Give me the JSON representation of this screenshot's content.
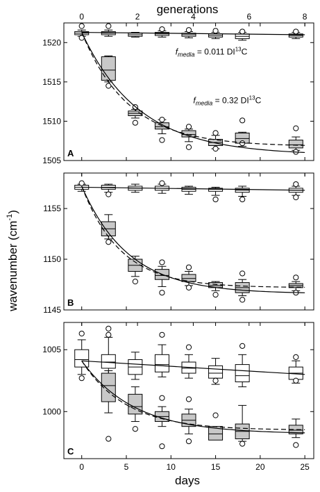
{
  "chart_data": {
    "type": "box",
    "xlabel": "days",
    "ylabel": "wavenumber (cm-1)",
    "ylabel_parts": {
      "base": "wavenumber (cm",
      "sup": "-1",
      "end": ")"
    },
    "x2label": "generations",
    "xlim": [
      -2,
      26
    ],
    "x_ticks": [
      0,
      5,
      10,
      15,
      20,
      25
    ],
    "x_tick_labels": [
      "0",
      "5",
      "10",
      "15",
      "20",
      "25"
    ],
    "x2_ticks": [
      0,
      2,
      4,
      6,
      8
    ],
    "x2_tick_labels": [
      "0",
      "2",
      "4",
      "6",
      "8"
    ],
    "x2_per_day": 0.32,
    "colors": {
      "control": "#ffffff",
      "labeled": "#c8c8c8",
      "stroke": "#000000"
    },
    "panels": [
      {
        "letter": "A",
        "ylim": [
          1505,
          1522.5
        ],
        "y_ticks": [
          1505,
          1510,
          1515,
          1520
        ],
        "y_tick_labels": [
          "1505",
          "1510",
          "1515",
          "1520"
        ],
        "annotations": [
          {
            "parts": [
              "f",
              "media",
              " = 0.011 DI",
              "13",
              "C"
            ],
            "x": 10.5,
            "y": 1518.5
          },
          {
            "parts": [
              "f",
              "media",
              " = 0.32 DI",
              "13",
              "C"
            ],
            "x": 12.5,
            "y": 1512.3
          }
        ],
        "series": [
          {
            "color": "#ffffff",
            "boxes": [
              {
                "x": 0,
                "q1": 1521.0,
                "med": 1521.2,
                "q3": 1521.4,
                "wlo": 1520.8,
                "whi": 1521.6,
                "out": [
                  1522.1,
                  1520.6
                ]
              },
              {
                "x": 3,
                "q1": 1521.0,
                "med": 1521.2,
                "q3": 1521.4,
                "wlo": 1520.8,
                "whi": 1521.6,
                "out": [
                  1522.1
                ]
              },
              {
                "x": 6,
                "q1": 1520.8,
                "med": 1521.0,
                "q3": 1521.2,
                "wlo": 1520.7,
                "whi": 1521.3,
                "out": []
              },
              {
                "x": 9,
                "q1": 1520.9,
                "med": 1521.1,
                "q3": 1521.3,
                "wlo": 1520.7,
                "whi": 1521.5,
                "out": [
                  1521.7
                ]
              },
              {
                "x": 12,
                "q1": 1520.8,
                "med": 1521.0,
                "q3": 1521.2,
                "wlo": 1520.6,
                "whi": 1521.4,
                "out": [
                  1521.6
                ]
              },
              {
                "x": 15,
                "q1": 1520.7,
                "med": 1520.9,
                "q3": 1521.1,
                "wlo": 1520.5,
                "whi": 1521.3,
                "out": [
                  1521.5
                ]
              },
              {
                "x": 18,
                "q1": 1520.5,
                "med": 1520.8,
                "q3": 1521.1,
                "wlo": 1520.3,
                "whi": 1521.3,
                "out": [
                  1521.4
                ]
              },
              {
                "x": 24,
                "q1": 1520.7,
                "med": 1520.9,
                "q3": 1521.1,
                "wlo": 1520.5,
                "whi": 1521.3,
                "out": [
                  1521.4
                ]
              }
            ]
          },
          {
            "color": "#c8c8c8",
            "boxes": [
              {
                "x": 3,
                "q1": 1515.2,
                "med": 1516.5,
                "q3": 1518.2,
                "wlo": 1515.0,
                "whi": 1518.3,
                "out": [
                  1514.5
                ]
              },
              {
                "x": 6,
                "q1": 1510.7,
                "med": 1511.0,
                "q3": 1511.3,
                "wlo": 1510.4,
                "whi": 1511.5,
                "out": [
                  1511.8,
                  1509.8
                ]
              },
              {
                "x": 9,
                "q1": 1509.0,
                "med": 1509.3,
                "q3": 1509.8,
                "wlo": 1508.4,
                "whi": 1510.2,
                "out": [
                  1510.2,
                  1507.6
                ]
              },
              {
                "x": 12,
                "q1": 1508.0,
                "med": 1508.3,
                "q3": 1508.8,
                "wlo": 1507.4,
                "whi": 1509.0,
                "out": [
                  1509.3,
                  1506.7
                ]
              },
              {
                "x": 15,
                "q1": 1506.9,
                "med": 1507.3,
                "q3": 1507.7,
                "wlo": 1506.5,
                "whi": 1508.2,
                "out": [
                  1508.5,
                  1506.5
                ]
              },
              {
                "x": 18,
                "q1": 1507.2,
                "med": 1507.8,
                "q3": 1508.5,
                "wlo": 1506.8,
                "whi": 1508.6,
                "out": [
                  1510.1,
                  1507.2
                ]
              },
              {
                "x": 24,
                "q1": 1506.6,
                "med": 1507.0,
                "q3": 1507.6,
                "wlo": 1506.3,
                "whi": 1508.0,
                "out": [
                  1509.1,
                  1506.1
                ]
              }
            ]
          }
        ],
        "curves": [
          {
            "type": "line",
            "style": "solid",
            "x0": 0,
            "x1": 25,
            "y0": 1521.3,
            "y1": 1521.0
          },
          {
            "type": "exp",
            "style": "solid",
            "x0": 0,
            "x1": 25,
            "a": 1505.7,
            "b": 15.6,
            "k": 0.155
          },
          {
            "type": "exp",
            "style": "dashed",
            "x0": 0,
            "x1": 25,
            "a": 1506.8,
            "b": 14.5,
            "k": 0.19
          }
        ]
      },
      {
        "letter": "B",
        "ylim": [
          1145,
          1158.5
        ],
        "y_ticks": [
          1145,
          1150,
          1155
        ],
        "y_tick_labels": [
          "1145",
          "1150",
          "1155"
        ],
        "annotations": [],
        "series": [
          {
            "color": "#ffffff",
            "boxes": [
              {
                "x": 0,
                "q1": 1156.9,
                "med": 1157.1,
                "q3": 1157.3,
                "wlo": 1156.7,
                "whi": 1157.4,
                "out": [
                  1157.5
                ]
              },
              {
                "x": 3,
                "q1": 1156.9,
                "med": 1157.1,
                "q3": 1157.3,
                "wlo": 1156.6,
                "whi": 1157.4,
                "out": [
                  1156.4
                ]
              },
              {
                "x": 6,
                "q1": 1156.8,
                "med": 1157.0,
                "q3": 1157.2,
                "wlo": 1156.6,
                "whi": 1157.4,
                "out": []
              },
              {
                "x": 9,
                "q1": 1156.8,
                "med": 1157.0,
                "q3": 1157.2,
                "wlo": 1156.5,
                "whi": 1157.4,
                "out": [
                  1157.5
                ]
              },
              {
                "x": 12,
                "q1": 1156.7,
                "med": 1156.9,
                "q3": 1157.1,
                "wlo": 1156.4,
                "whi": 1157.2,
                "out": []
              },
              {
                "x": 15,
                "q1": 1156.7,
                "med": 1156.9,
                "q3": 1157.0,
                "wlo": 1156.3,
                "whi": 1157.1,
                "out": [
                  1155.9
                ]
              },
              {
                "x": 18,
                "q1": 1156.6,
                "med": 1156.8,
                "q3": 1157.0,
                "wlo": 1156.2,
                "whi": 1157.2,
                "out": [
                  1155.9
                ]
              },
              {
                "x": 24,
                "q1": 1156.6,
                "med": 1156.8,
                "q3": 1157.0,
                "wlo": 1156.3,
                "whi": 1157.2,
                "out": [
                  1157.4,
                  1156.1
                ]
              }
            ]
          },
          {
            "color": "#c8c8c8",
            "boxes": [
              {
                "x": 3,
                "q1": 1152.3,
                "med": 1153.0,
                "q3": 1153.7,
                "wlo": 1152.0,
                "whi": 1154.4,
                "out": [
                  1151.7
                ]
              },
              {
                "x": 6,
                "q1": 1148.8,
                "med": 1149.4,
                "q3": 1150.0,
                "wlo": 1148.3,
                "whi": 1150.3,
                "out": [
                  1147.8
                ]
              },
              {
                "x": 9,
                "q1": 1148.0,
                "med": 1148.4,
                "q3": 1149.0,
                "wlo": 1147.3,
                "whi": 1149.3,
                "out": [
                  1149.7,
                  1146.7
                ]
              },
              {
                "x": 12,
                "q1": 1147.8,
                "med": 1148.1,
                "q3": 1148.5,
                "wlo": 1147.4,
                "whi": 1148.8,
                "out": [
                  1149.2,
                  1147.2
                ]
              },
              {
                "x": 15,
                "q1": 1147.2,
                "med": 1147.4,
                "q3": 1147.7,
                "wlo": 1146.9,
                "whi": 1147.8,
                "out": [
                  1146.5
                ]
              },
              {
                "x": 18,
                "q1": 1146.7,
                "med": 1147.2,
                "q3": 1147.7,
                "wlo": 1146.4,
                "whi": 1148.0,
                "out": [
                  1148.6,
                  1146.0
                ]
              },
              {
                "x": 24,
                "q1": 1147.2,
                "med": 1147.4,
                "q3": 1147.6,
                "wlo": 1146.9,
                "whi": 1147.8,
                "out": [
                  1148.2,
                  1146.7
                ]
              }
            ]
          }
        ],
        "curves": [
          {
            "type": "line",
            "style": "solid",
            "x0": 0,
            "x1": 25,
            "y0": 1157.1,
            "y1": 1156.8
          },
          {
            "type": "exp",
            "style": "solid",
            "x0": 0,
            "x1": 25,
            "a": 1146.6,
            "b": 10.6,
            "k": 0.19
          },
          {
            "type": "exp",
            "style": "dashed",
            "x0": 0,
            "x1": 25,
            "a": 1147.2,
            "b": 10.0,
            "k": 0.23
          }
        ]
      },
      {
        "letter": "C",
        "ylim": [
          996.2,
          1007.2
        ],
        "y_ticks": [
          1000,
          1005
        ],
        "y_tick_labels": [
          "1000",
          "1005"
        ],
        "annotations": [],
        "series": [
          {
            "color": "#ffffff",
            "boxes": [
              {
                "x": 0,
                "q1": 1003.6,
                "med": 1004.2,
                "q3": 1005.0,
                "wlo": 1003.0,
                "whi": 1005.8,
                "out": [
                  1006.3,
                  1002.7
                ]
              },
              {
                "x": 3,
                "q1": 1003.5,
                "med": 1004.0,
                "q3": 1004.6,
                "wlo": 1002.9,
                "whi": 1006.0,
                "out": [
                  1006.7,
                  1006.2
                ]
              },
              {
                "x": 6,
                "q1": 1003.0,
                "med": 1003.6,
                "q3": 1004.2,
                "wlo": 1002.6,
                "whi": 1004.8,
                "out": []
              },
              {
                "x": 9,
                "q1": 1003.2,
                "med": 1003.8,
                "q3": 1004.6,
                "wlo": 1002.8,
                "whi": 1005.4,
                "out": [
                  1006.2
                ]
              },
              {
                "x": 12,
                "q1": 1003.1,
                "med": 1003.5,
                "q3": 1004.0,
                "wlo": 1002.7,
                "whi": 1004.6,
                "out": [
                  1005.2
                ]
              },
              {
                "x": 15,
                "q1": 1002.7,
                "med": 1003.1,
                "q3": 1003.7,
                "wlo": 1002.2,
                "whi": 1004.3,
                "out": [
                  1002.5
                ]
              },
              {
                "x": 18,
                "q1": 1002.4,
                "med": 1002.9,
                "q3": 1003.8,
                "wlo": 1002.0,
                "whi": 1004.6,
                "out": [
                  1005.3
                ]
              },
              {
                "x": 24,
                "q1": 1002.6,
                "med": 1003.1,
                "q3": 1003.6,
                "wlo": 1002.3,
                "whi": 1004.1,
                "out": [
                  1004.4,
                  1002.5
                ]
              }
            ]
          },
          {
            "color": "#c8c8c8",
            "boxes": [
              {
                "x": 3,
                "q1": 1000.8,
                "med": 1002.1,
                "q3": 1003.1,
                "wlo": 999.9,
                "whi": 1003.3,
                "out": [
                  997.8
                ]
              },
              {
                "x": 6,
                "q1": 999.8,
                "med": 1000.4,
                "q3": 1001.4,
                "wlo": 999.2,
                "whi": 1002.0,
                "out": [
                  998.6
                ]
              },
              {
                "x": 9,
                "q1": 999.2,
                "med": 999.6,
                "q3": 1000.0,
                "wlo": 998.8,
                "whi": 1000.4,
                "out": [
                  1001.1,
                  997.2
                ]
              },
              {
                "x": 12,
                "q1": 998.8,
                "med": 999.3,
                "q3": 999.8,
                "wlo": 998.2,
                "whi": 1000.2,
                "out": [
                  1001.0,
                  997.6
                ]
              },
              {
                "x": 15,
                "q1": 997.7,
                "med": 998.2,
                "q3": 998.8,
                "wlo": 997.9,
                "whi": 998.6,
                "out": [
                  999.7
                ]
              },
              {
                "x": 18,
                "q1": 997.8,
                "med": 998.4,
                "q3": 999.0,
                "wlo": 997.6,
                "whi": 1000.5,
                "out": [
                  997.4
                ]
              },
              {
                "x": 24,
                "q1": 998.2,
                "med": 998.5,
                "q3": 998.9,
                "wlo": 997.9,
                "whi": 999.4,
                "out": [
                  997.3
                ]
              }
            ]
          }
        ],
        "curves": [
          {
            "type": "line",
            "style": "solid",
            "x0": 0,
            "x1": 25,
            "y0": 1004.1,
            "y1": 1003.0
          },
          {
            "type": "exp",
            "style": "solid",
            "x0": 0,
            "x1": 25,
            "a": 998.2,
            "b": 5.9,
            "k": 0.17
          },
          {
            "type": "exp",
            "style": "dashed",
            "x0": 0,
            "x1": 25,
            "a": 998.5,
            "b": 5.6,
            "k": 0.2
          }
        ]
      }
    ]
  }
}
